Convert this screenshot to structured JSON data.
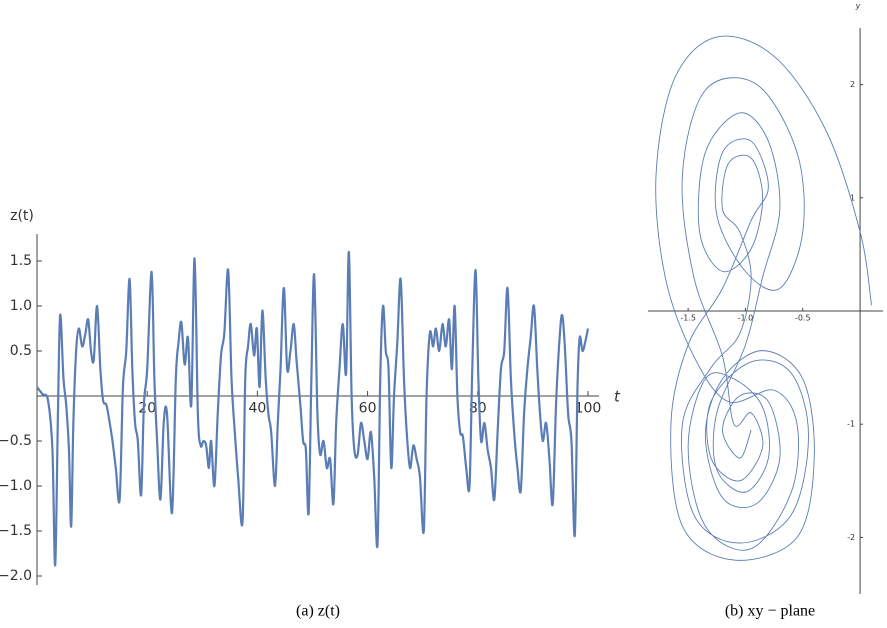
{
  "chart_data": [
    {
      "type": "line",
      "y_label": "z(t)",
      "x_label": "t",
      "caption": "(a) z(t)",
      "color": "#5b7db5",
      "xlim": [
        0,
        102
      ],
      "ylim": [
        -2.1,
        1.8
      ],
      "xticks": [
        20,
        40,
        60,
        80,
        100
      ],
      "yticks": [
        {
          "value": -2,
          "label": "−2.0"
        },
        {
          "value": -1.5,
          "label": "−1.5"
        },
        {
          "value": -1,
          "label": "−1.0"
        },
        {
          "value": -0.5,
          "label": "−0.5"
        },
        0.5,
        {
          "value": 1,
          "label": "1.0"
        },
        1.5
      ],
      "x": [
        0,
        1,
        2,
        2.8,
        3.3,
        3.8,
        4.2,
        4.8,
        5.3,
        5.8,
        6.2,
        6.6,
        7.1,
        7.6,
        8.2,
        8.8,
        9.3,
        9.8,
        10.3,
        10.9,
        11.5,
        12,
        12.6,
        13.2,
        13.7,
        14.3,
        15,
        15.6,
        16.2,
        16.8,
        17.3,
        17.8,
        18.3,
        18.9,
        19.4,
        20,
        20.8,
        21.3,
        21.8,
        22.4,
        23,
        23.6,
        24.5,
        25.2,
        25.7,
        26.2,
        26.8,
        27.4,
        28,
        28.6,
        29.2,
        29.7,
        30.2,
        30.7,
        31.2,
        31.6,
        32.2,
        32.8,
        33.4,
        34,
        34.7,
        35.3,
        35.9,
        36.5,
        37.3,
        37.8,
        38.3,
        38.8,
        39.4,
        39.9,
        40.4,
        40.9,
        41.5,
        42,
        42.5,
        43.2,
        43.7,
        44.2,
        44.8,
        45.4,
        46,
        46.6,
        47.1,
        47.8,
        48.3,
        48.8,
        49.3,
        49.8,
        50.3,
        50.9,
        51.4,
        52,
        52.6,
        53.2,
        53.8,
        54.3,
        54.9,
        55.5,
        56.1,
        56.6,
        57.1,
        57.6,
        58.2,
        58.8,
        59.4,
        60,
        60.6,
        61.2,
        61.8,
        62.3,
        62.8,
        63.3,
        63.8,
        64.3,
        64.8,
        65.4,
        66,
        66.6,
        67.1,
        67.7,
        68.3,
        68.9,
        69.5,
        70.2,
        70.7,
        71.3,
        71.9,
        72.4,
        73,
        73.6,
        74.2,
        74.8,
        75.3,
        75.8,
        76.3,
        76.8,
        77.3,
        77.9,
        78.5,
        79,
        79.6,
        80.1,
        80.6,
        81.2,
        81.8,
        82.4,
        83,
        83.6,
        84.2,
        84.8,
        85.4,
        86,
        86.6,
        87.2,
        87.8,
        88.4,
        89,
        89.6,
        90.2,
        90.8,
        91.3,
        91.8,
        92.4,
        93,
        93.6,
        94.2,
        94.8,
        95.3,
        95.8,
        96.4,
        97,
        97.6,
        98.1,
        98.5,
        99,
        99.5,
        100
      ],
      "values": [
        0.1,
        0.02,
        -0.05,
        -0.6,
        -1.88,
        -0.2,
        0.9,
        0.2,
        -0.1,
        -0.6,
        -1.45,
        -0.3,
        0.5,
        0.75,
        0.55,
        0.7,
        0.85,
        0.5,
        0.4,
        1.0,
        0.3,
        -0.05,
        -0.1,
        -0.3,
        -0.5,
        -0.8,
        -1.15,
        0.1,
        0.5,
        1.3,
        0.3,
        -0.3,
        -0.5,
        -1.1,
        -0.1,
        0.3,
        1.38,
        0.2,
        -0.5,
        -1.15,
        -0.3,
        -0.2,
        -1.3,
        0.2,
        0.6,
        0.82,
        0.35,
        0.65,
        -0.1,
        1.53,
        -0.2,
        -0.55,
        -0.5,
        -0.55,
        -0.8,
        -0.5,
        -1.0,
        -0.2,
        0.45,
        0.7,
        1.4,
        0.2,
        -0.4,
        -0.9,
        -1.4,
        0.2,
        0.55,
        0.8,
        0.45,
        0.75,
        0.1,
        0.95,
        0.2,
        -0.2,
        -0.4,
        -1.0,
        -0.3,
        0.3,
        1.2,
        0.3,
        0.5,
        0.8,
        0.4,
        -0.1,
        -0.5,
        -0.6,
        -1.3,
        0.2,
        1.35,
        -0.2,
        -0.65,
        -0.5,
        -0.8,
        -0.7,
        -1.2,
        -0.3,
        0.3,
        0.8,
        0.25,
        1.6,
        0.0,
        -0.6,
        -0.65,
        -0.3,
        -0.5,
        -0.7,
        -0.4,
        -0.9,
        -1.65,
        0.2,
        1.0,
        0.5,
        0.3,
        -0.8,
        0.0,
        0.6,
        1.3,
        0.2,
        -0.4,
        -0.8,
        -0.55,
        -0.7,
        -0.9,
        -1.5,
        0.0,
        0.7,
        0.55,
        0.75,
        0.5,
        0.8,
        0.55,
        0.85,
        0.3,
        1.0,
        0.0,
        -0.4,
        -0.45,
        -0.8,
        -1.0,
        0.3,
        1.4,
        0.2,
        -0.5,
        -0.3,
        -0.6,
        -0.8,
        -1.15,
        -0.4,
        0.3,
        0.5,
        1.2,
        0.2,
        -0.4,
        -0.8,
        -1.05,
        -0.2,
        0.3,
        0.65,
        1.0,
        0.3,
        -0.2,
        -0.5,
        -0.3,
        -0.7,
        -1.2,
        -0.1,
        0.6,
        0.9,
        0.55,
        -0.2,
        -0.5,
        -1.55,
        0.1,
        0.65,
        0.5,
        0.6,
        0.75
      ]
    },
    {
      "type": "line",
      "y_label": "y",
      "caption": "(b) xy − plane",
      "color": "#5b7db5",
      "xlim": [
        -1.85,
        0.2
      ],
      "ylim": [
        -2.5,
        2.5
      ],
      "xticks": [
        -1.5,
        {
          "value": -1,
          "label": "-1.0"
        },
        -0.5
      ],
      "yticks": [
        -2,
        -1,
        1,
        2
      ],
      "x": [
        0.1,
        0.0,
        -0.3,
        -0.75,
        -1.25,
        -1.62,
        -1.78,
        -1.7,
        -1.45,
        -1.15,
        -0.75,
        -0.55,
        -0.6,
        -0.95,
        -1.35,
        -1.5,
        -1.35,
        -1.1,
        -0.85,
        -0.8,
        -1.0,
        -1.25,
        -1.25,
        -1.0,
        -0.85,
        -0.7,
        -0.8,
        -1.05,
        -1.35,
        -1.4,
        -1.2,
        -0.95,
        -0.85,
        -0.95,
        -1.15,
        -1.2,
        -1.05,
        -0.95,
        -1.05,
        -1.3,
        -1.55,
        -1.45,
        -1.05,
        -0.6,
        -0.45,
        -0.6,
        -0.95,
        -1.3,
        -1.3,
        -1.05,
        -0.85,
        -0.95,
        -1.1,
        -1.2,
        -1.45,
        -1.55,
        -1.35,
        -0.9,
        -0.55,
        -0.5,
        -0.7,
        -1.0,
        -1.25,
        -1.2,
        -0.95,
        -0.8,
        -0.95,
        -1.2,
        -1.5,
        -1.65,
        -1.55,
        -1.1,
        -0.55,
        -0.4,
        -0.5,
        -0.85,
        -1.2,
        -1.35,
        -1.2,
        -0.9,
        -0.7,
        -0.8,
        -1.05,
        -1.2,
        -1.05,
        -0.95
      ],
      "values": [
        0.05,
        0.7,
        1.6,
        2.25,
        2.42,
        2.05,
        1.2,
        0.3,
        -0.4,
        -0.8,
        -0.7,
        -1.0,
        -1.6,
        -2.1,
        -1.9,
        -1.2,
        -0.6,
        -0.6,
        -0.85,
        -1.3,
        -1.6,
        -1.4,
        -0.9,
        -0.3,
        0.3,
        0.9,
        1.5,
        1.75,
        1.4,
        0.7,
        0.35,
        0.55,
        1.0,
        1.35,
        1.3,
        0.9,
        0.7,
        0.3,
        -0.2,
        -0.5,
        -1.0,
        -1.8,
        -2.05,
        -1.8,
        -1.1,
        -0.55,
        -0.45,
        -0.8,
        -1.3,
        -1.5,
        -1.2,
        -0.9,
        -1.0,
        -0.4,
        0.3,
        1.2,
        1.95,
        2.0,
        1.4,
        0.7,
        0.2,
        0.35,
        0.85,
        1.4,
        1.5,
        1.1,
        0.8,
        0.2,
        -0.3,
        -1.0,
        -1.9,
        -2.2,
        -2.0,
        -1.3,
        -0.6,
        -0.35,
        -0.6,
        -1.1,
        -1.65,
        -1.7,
        -1.3,
        -0.8,
        -0.75,
        -1.05,
        -1.3,
        -1.05
      ]
    }
  ]
}
